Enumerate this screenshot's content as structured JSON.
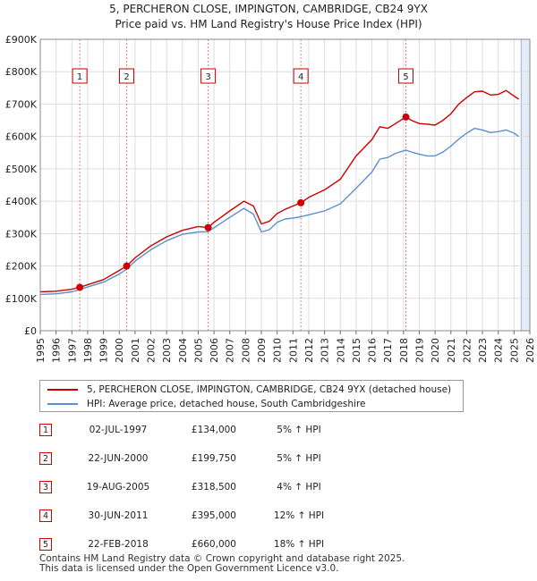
{
  "chart_data": {
    "type": "line",
    "title": "5, PERCHERON CLOSE, IMPINGTON, CAMBRIDGE, CB24 9YX",
    "subtitle": "Price paid vs. HM Land Registry's House Price Index (HPI)",
    "x_ticks": [
      "1995",
      "1996",
      "1997",
      "1998",
      "1999",
      "2000",
      "2001",
      "2002",
      "2003",
      "2004",
      "2005",
      "2006",
      "2007",
      "2008",
      "2009",
      "2010",
      "2011",
      "2012",
      "2013",
      "2014",
      "2015",
      "2016",
      "2017",
      "2018",
      "2019",
      "2020",
      "2021",
      "2022",
      "2023",
      "2024",
      "2025",
      "2026"
    ],
    "y_ticks": [
      "£0",
      "£100K",
      "£200K",
      "£300K",
      "£400K",
      "£500K",
      "£600K",
      "£700K",
      "£800K",
      "£900K"
    ],
    "xlim": [
      1995,
      2026
    ],
    "ylim": [
      0,
      900000
    ],
    "data_end": 2025.45,
    "colors": {
      "property": "#cc0000",
      "hpi": "#5b8fd0",
      "shade": "#e5ecf7",
      "grid": "#dddddd",
      "marker": "#cc0000",
      "vline": "#e08080"
    },
    "series": [
      {
        "name": "5, PERCHERON CLOSE, IMPINGTON, CAMBRIDGE, CB24 9YX (detached house)",
        "color": "#cc0000",
        "points": [
          [
            1995.0,
            120000
          ],
          [
            1996.0,
            122000
          ],
          [
            1997.0,
            128000
          ],
          [
            1997.5,
            134000
          ],
          [
            1998.0,
            142000
          ],
          [
            1999.0,
            158000
          ],
          [
            2000.0,
            186000
          ],
          [
            2000.47,
            199750
          ],
          [
            2001.0,
            225000
          ],
          [
            2002.0,
            262000
          ],
          [
            2003.0,
            290000
          ],
          [
            2004.0,
            310000
          ],
          [
            2005.0,
            322000
          ],
          [
            2005.63,
            318500
          ],
          [
            2006.0,
            335000
          ],
          [
            2007.0,
            370000
          ],
          [
            2007.9,
            400000
          ],
          [
            2008.5,
            385000
          ],
          [
            2009.0,
            330000
          ],
          [
            2009.5,
            338000
          ],
          [
            2010.0,
            362000
          ],
          [
            2010.5,
            375000
          ],
          [
            2011.0,
            385000
          ],
          [
            2011.5,
            395000
          ],
          [
            2012.0,
            412000
          ],
          [
            2013.0,
            435000
          ],
          [
            2014.0,
            468000
          ],
          [
            2015.0,
            540000
          ],
          [
            2016.0,
            590000
          ],
          [
            2016.5,
            630000
          ],
          [
            2017.0,
            625000
          ],
          [
            2017.5,
            640000
          ],
          [
            2018.15,
            660000
          ],
          [
            2018.5,
            650000
          ],
          [
            2019.0,
            640000
          ],
          [
            2019.5,
            638000
          ],
          [
            2020.0,
            635000
          ],
          [
            2020.5,
            650000
          ],
          [
            2021.0,
            670000
          ],
          [
            2021.5,
            700000
          ],
          [
            2022.0,
            720000
          ],
          [
            2022.5,
            738000
          ],
          [
            2023.0,
            740000
          ],
          [
            2023.5,
            728000
          ],
          [
            2024.0,
            730000
          ],
          [
            2024.5,
            742000
          ],
          [
            2025.0,
            725000
          ],
          [
            2025.3,
            715000
          ]
        ]
      },
      {
        "name": "HPI: Average price, detached house, South Cambridgeshire",
        "color": "#5b8fd0",
        "points": [
          [
            1995.0,
            112000
          ],
          [
            1996.0,
            114000
          ],
          [
            1997.0,
            120000
          ],
          [
            1997.5,
            127000
          ],
          [
            1998.0,
            135000
          ],
          [
            1999.0,
            150000
          ],
          [
            2000.0,
            175000
          ],
          [
            2000.47,
            190000
          ],
          [
            2001.0,
            215000
          ],
          [
            2002.0,
            250000
          ],
          [
            2003.0,
            278000
          ],
          [
            2004.0,
            298000
          ],
          [
            2005.0,
            305000
          ],
          [
            2005.63,
            306000
          ],
          [
            2006.0,
            318000
          ],
          [
            2007.0,
            350000
          ],
          [
            2007.9,
            378000
          ],
          [
            2008.5,
            360000
          ],
          [
            2009.0,
            305000
          ],
          [
            2009.5,
            312000
          ],
          [
            2010.0,
            335000
          ],
          [
            2010.5,
            345000
          ],
          [
            2011.0,
            348000
          ],
          [
            2011.5,
            352000
          ],
          [
            2012.0,
            358000
          ],
          [
            2013.0,
            370000
          ],
          [
            2014.0,
            392000
          ],
          [
            2015.0,
            440000
          ],
          [
            2016.0,
            490000
          ],
          [
            2016.5,
            530000
          ],
          [
            2017.0,
            535000
          ],
          [
            2017.5,
            548000
          ],
          [
            2018.15,
            558000
          ],
          [
            2018.5,
            552000
          ],
          [
            2019.0,
            545000
          ],
          [
            2019.5,
            540000
          ],
          [
            2020.0,
            540000
          ],
          [
            2020.5,
            552000
          ],
          [
            2021.0,
            570000
          ],
          [
            2021.5,
            592000
          ],
          [
            2022.0,
            610000
          ],
          [
            2022.5,
            625000
          ],
          [
            2023.0,
            620000
          ],
          [
            2023.5,
            612000
          ],
          [
            2024.0,
            615000
          ],
          [
            2024.5,
            620000
          ],
          [
            2025.0,
            610000
          ],
          [
            2025.3,
            600000
          ]
        ]
      }
    ],
    "sales": [
      {
        "num": "1",
        "x": 1997.5,
        "price_value": 134000,
        "date": "02-JUL-1997",
        "price": "£134,000",
        "hpi": "5% ↑ HPI"
      },
      {
        "num": "2",
        "x": 2000.47,
        "price_value": 199750,
        "date": "22-JUN-2000",
        "price": "£199,750",
        "hpi": "5% ↑ HPI"
      },
      {
        "num": "3",
        "x": 2005.63,
        "price_value": 318500,
        "date": "19-AUG-2005",
        "price": "£318,500",
        "hpi": "4% ↑ HPI"
      },
      {
        "num": "4",
        "x": 2011.5,
        "price_value": 395000,
        "date": "30-JUN-2011",
        "price": "£395,000",
        "hpi": "12% ↑ HPI"
      },
      {
        "num": "5",
        "x": 2018.15,
        "price_value": 660000,
        "date": "22-FEB-2018",
        "price": "£660,000",
        "hpi": "18% ↑ HPI"
      }
    ]
  },
  "legend": {
    "property_label": "5, PERCHERON CLOSE, IMPINGTON, CAMBRIDGE, CB24 9YX (detached house)",
    "hpi_label": "HPI: Average price, detached house, South Cambridgeshire"
  },
  "footer": {
    "line1": "Contains HM Land Registry data © Crown copyright and database right 2025.",
    "line2": "This data is licensed under the Open Government Licence v3.0."
  }
}
